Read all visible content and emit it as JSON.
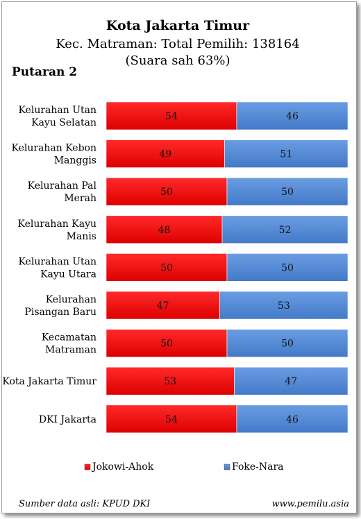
{
  "chart_data": {
    "type": "bar",
    "stacked": true,
    "orientation": "horizontal",
    "title": "Kota Jakarta Timur",
    "subtitle_lines": [
      "Kec. Matraman: Total Pemilih: 138164",
      "(Suara sah 63%)"
    ],
    "round_label": "Putaran 2",
    "categories": [
      [
        "Kelurahan Utan",
        "Kayu Selatan"
      ],
      [
        "Kelurahan Kebon",
        "Manggis"
      ],
      [
        "Kelurahan Pal",
        "Merah"
      ],
      [
        "Kelurahan Kayu",
        "Manis"
      ],
      [
        "Kelurahan Utan",
        "Kayu Utara"
      ],
      [
        "Kelurahan",
        "Pisangan Baru"
      ],
      [
        "Kecamatan",
        "Matraman"
      ],
      [
        "Kota Jakarta Timur"
      ],
      [
        "DKI Jakarta"
      ]
    ],
    "series": [
      {
        "name": "Jokowi-Ahok",
        "color": "#ee1111",
        "values": [
          54,
          49,
          50,
          48,
          50,
          47,
          50,
          53,
          54
        ]
      },
      {
        "name": "Foke-Nara",
        "color": "#4f88d6",
        "values": [
          46,
          51,
          50,
          52,
          50,
          53,
          50,
          47,
          46
        ]
      }
    ],
    "xlim": [
      0,
      100
    ],
    "legend_position": "bottom"
  },
  "footer": {
    "source": "Sumber data asli: KPUD DKI",
    "site": "www.pemilu.asia"
  }
}
